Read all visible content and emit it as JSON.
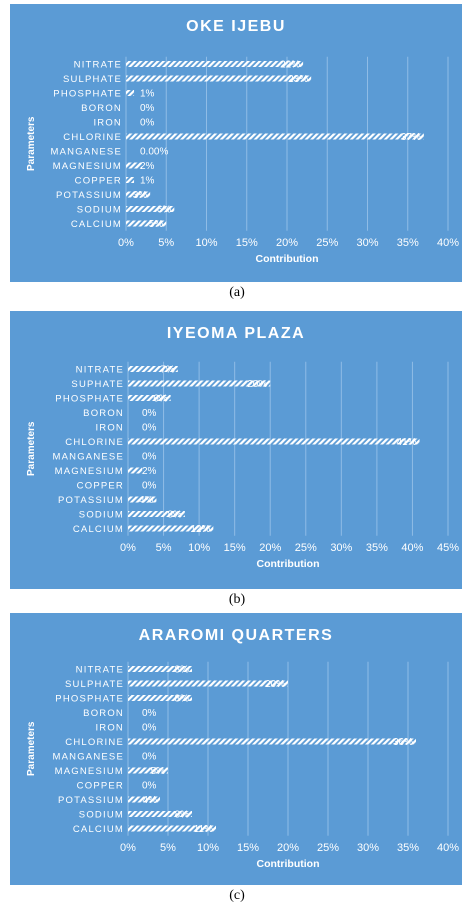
{
  "chart_data": [
    {
      "type": "bar",
      "title": "OKE IJEBU",
      "xlabel": "Contribution",
      "ylabel": "Parameters",
      "categories": [
        "NITRATE",
        "SULPHATE",
        "PHOSPHATE",
        "BORON",
        "IRON",
        "CHLORINE",
        "MANGANESE",
        "MAGNESIUM",
        "COPPER",
        "POTASSIUM",
        "SODIUM",
        "CALCIUM"
      ],
      "values": [
        22,
        23,
        1,
        0,
        0,
        37,
        0,
        2,
        1,
        3,
        6,
        5
      ],
      "labels": [
        "22%",
        "23%",
        "1%",
        "0%",
        "0%",
        "37%",
        "0.00%",
        "2%",
        "1%",
        "3%",
        "6%",
        "5%"
      ],
      "xticks": [
        "0%",
        "5%",
        "10%",
        "15%",
        "20%",
        "25%",
        "30%",
        "35%",
        "40%"
      ],
      "xlim": [
        0,
        40
      ],
      "grid": true,
      "caption": "(a)"
    },
    {
      "type": "bar",
      "title": "IYEOMA PLAZA",
      "xlabel": "Contribution",
      "ylabel": "Parameters",
      "categories": [
        "NITRATE",
        "SUPHATE",
        "PHOSPHATE",
        "BORON",
        "IRON",
        "CHLORINE",
        "MANGANESE",
        "MAGNESIUM",
        "COPPER",
        "POTASSIUM",
        "SODIUM",
        "CALCIUM"
      ],
      "values": [
        7,
        20,
        6,
        0,
        0,
        41,
        0,
        2,
        0,
        4,
        8,
        12
      ],
      "labels": [
        "7%",
        "20%",
        "6%",
        "0%",
        "0%",
        "41%",
        "0%",
        "2%",
        "0%",
        "4%",
        "8%",
        "12%"
      ],
      "xticks": [
        "0%",
        "5%",
        "10%",
        "15%",
        "20%",
        "25%",
        "30%",
        "35%",
        "40%",
        "45%"
      ],
      "xlim": [
        0,
        45
      ],
      "grid": true,
      "caption": "(b)"
    },
    {
      "type": "bar",
      "title": "ARAROMI QUARTERS",
      "xlabel": "Contribution",
      "ylabel": "Parameters",
      "categories": [
        "NITRATE",
        "SULPHATE",
        "PHOSPHATE",
        "BORON",
        "IRON",
        "CHLORINE",
        "MANGANESE",
        "MAGNESIUM",
        "COPPER",
        "POTASSIUM",
        "SODIUM",
        "CALCIUM"
      ],
      "values": [
        8,
        20,
        8,
        0,
        0,
        36,
        0,
        5,
        0,
        4,
        8,
        11
      ],
      "labels": [
        "8%",
        "20%",
        "8%",
        "0%",
        "0%",
        "36%",
        "0%",
        "5%",
        "0%",
        "4%",
        "8%",
        "11%"
      ],
      "xticks": [
        "0%",
        "5%",
        "10%",
        "15%",
        "20%",
        "25%",
        "30%",
        "35%",
        "40%"
      ],
      "xlim": [
        0,
        40
      ],
      "grid": true,
      "caption": "(c)"
    }
  ],
  "colors": {
    "panel_background": "#5b9bd5",
    "bar_stripe": "#ffffff",
    "text": "#ffffff",
    "gridline": "#8fbce6"
  }
}
